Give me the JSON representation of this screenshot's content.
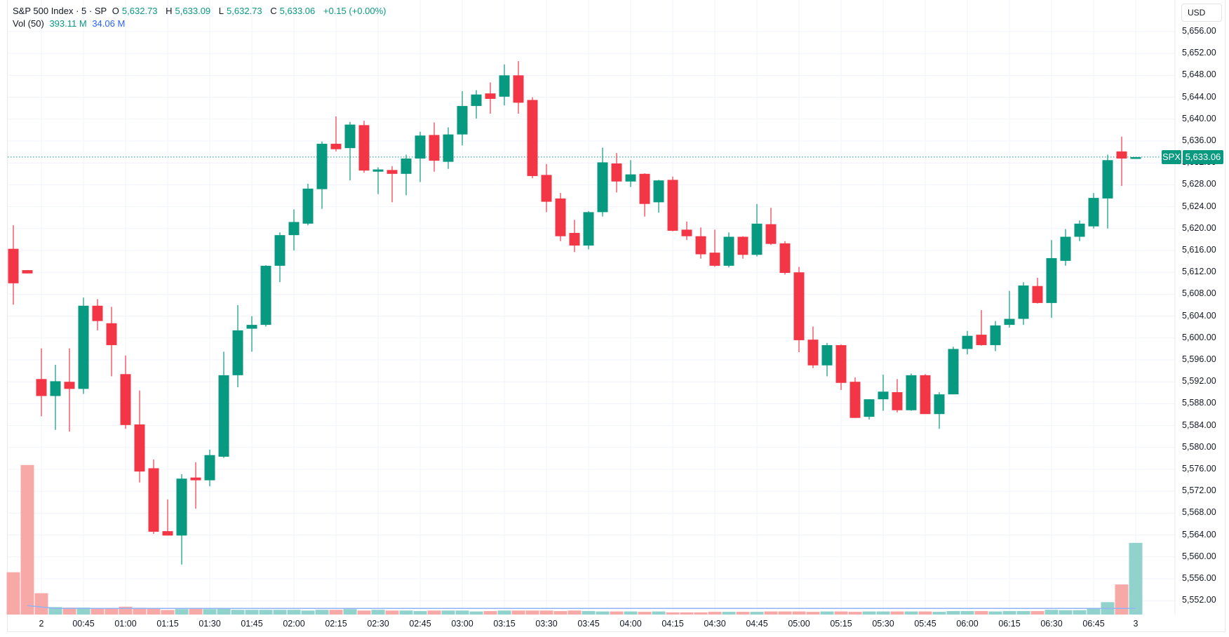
{
  "legend": {
    "symbol_line": "S&P 500 Index · 5 · SP",
    "open_label": "O",
    "open": "5,632.73",
    "high_label": "H",
    "high": "5,633.09",
    "low_label": "L",
    "low": "5,632.73",
    "close_label": "C",
    "close": "5,633.06",
    "change": "+0.15 (+0.00%)",
    "vol_label": "Vol (50)",
    "vol_value": "393.11 M",
    "vol_ma": "34.06 M"
  },
  "currency": "USD",
  "last_price_tag": {
    "symbol": "SPX",
    "price": "5,633.06"
  },
  "colors": {
    "up": "#089981",
    "down": "#f23645",
    "up_vol": "#92d2cc",
    "down_vol": "#f7a9a7",
    "grid": "#f0f3fa",
    "ma": "#2962ff"
  },
  "y_axis_labels": [
    "5,656.00",
    "5,652.00",
    "5,648.00",
    "5,644.00",
    "5,640.00",
    "5,636.00",
    "5,632.00",
    "5,628.00",
    "5,624.00",
    "5,620.00",
    "5,616.00",
    "5,612.00",
    "5,608.00",
    "5,604.00",
    "5,600.00",
    "5,596.00",
    "5,592.00",
    "5,588.00",
    "5,584.00",
    "5,580.00",
    "5,576.00",
    "5,572.00",
    "5,568.00",
    "5,564.00",
    "5,560.00",
    "5,556.00",
    "5,552.00"
  ],
  "x_axis_labels": [
    "2",
    "00:45",
    "01:00",
    "01:15",
    "01:30",
    "01:45",
    "02:00",
    "02:15",
    "02:30",
    "02:45",
    "03:00",
    "03:15",
    "03:30",
    "03:45",
    "04:00",
    "04:15",
    "04:30",
    "04:45",
    "05:00",
    "05:15",
    "05:30",
    "05:45",
    "06:00",
    "06:15",
    "06:30",
    "06:45",
    "3"
  ],
  "chart_data": {
    "type": "candlestick",
    "title": "S&P 500 Index · 5 · SP",
    "ylabel": "USD",
    "ylim": [
      5550,
      5658
    ],
    "ohlc": [
      [
        5616.3,
        5620.6,
        5606.1,
        5610.0
      ],
      [
        5612.4,
        5612.4,
        5611.8,
        5611.8
      ],
      [
        5592.5,
        5598.1,
        5585.7,
        5589.4
      ],
      [
        5589.4,
        5595.1,
        5583.2,
        5592.1
      ],
      [
        5592.0,
        5598.1,
        5582.9,
        5590.7
      ],
      [
        5590.7,
        5607.4,
        5589.8,
        5605.9
      ],
      [
        5605.9,
        5607.1,
        5601.4,
        5603.1
      ],
      [
        5602.7,
        5605.7,
        5593.0,
        5598.7
      ],
      [
        5593.4,
        5596.8,
        5583.4,
        5584.1
      ],
      [
        5584.2,
        5590.4,
        5573.6,
        5575.6
      ],
      [
        5576.2,
        5577.8,
        5564.2,
        5564.6
      ],
      [
        5564.7,
        5570.5,
        5563.9,
        5563.9
      ],
      [
        5563.9,
        5575.1,
        5558.6,
        5574.3
      ],
      [
        5574.5,
        5577.3,
        5568.8,
        5574.0
      ],
      [
        5574.0,
        5579.6,
        5572.9,
        5578.6
      ],
      [
        5578.3,
        5597.5,
        5578.1,
        5593.2
      ],
      [
        5593.2,
        5606.0,
        5591.0,
        5601.4
      ],
      [
        5601.7,
        5604.0,
        5597.5,
        5602.4
      ],
      [
        5602.4,
        5613.3,
        5602.1,
        5613.2
      ],
      [
        5613.2,
        5619.3,
        5610.2,
        5618.8
      ],
      [
        5618.8,
        5623.5,
        5616.0,
        5621.2
      ],
      [
        5620.9,
        5628.2,
        5620.6,
        5627.3
      ],
      [
        5627.2,
        5635.9,
        5623.6,
        5635.5
      ],
      [
        5635.5,
        5640.5,
        5634.1,
        5634.5
      ],
      [
        5634.7,
        5639.5,
        5628.8,
        5639.0
      ],
      [
        5638.9,
        5639.7,
        5630.2,
        5630.6
      ],
      [
        5630.4,
        5631.2,
        5626.3,
        5630.8
      ],
      [
        5630.7,
        5631.4,
        5624.8,
        5630.0
      ],
      [
        5630.0,
        5633.5,
        5626.1,
        5632.8
      ],
      [
        5632.8,
        5637.7,
        5628.5,
        5637.0
      ],
      [
        5637.1,
        5639.4,
        5630.4,
        5632.4
      ],
      [
        5632.2,
        5638.5,
        5630.9,
        5637.2
      ],
      [
        5637.2,
        5645.1,
        5635.2,
        5642.4
      ],
      [
        5642.4,
        5645.3,
        5640.1,
        5644.5
      ],
      [
        5644.7,
        5646.7,
        5641.0,
        5643.7
      ],
      [
        5644.1,
        5650.0,
        5642.5,
        5648.0
      ],
      [
        5648.0,
        5650.6,
        5641.0,
        5643.0
      ],
      [
        5643.5,
        5644.0,
        5629.2,
        5629.6
      ],
      [
        5629.8,
        5631.8,
        5623.0,
        5624.9
      ],
      [
        5625.5,
        5626.5,
        5617.7,
        5618.6
      ],
      [
        5619.2,
        5621.6,
        5615.7,
        5616.9
      ],
      [
        5616.9,
        5623.2,
        5616.2,
        5623.0
      ],
      [
        5623.0,
        5634.8,
        5622.2,
        5632.1
      ],
      [
        5631.9,
        5633.8,
        5626.6,
        5628.6
      ],
      [
        5628.6,
        5632.5,
        5627.6,
        5629.9
      ],
      [
        5630.0,
        5630.1,
        5622.2,
        5624.5
      ],
      [
        5624.8,
        5628.9,
        5622.9,
        5628.8
      ],
      [
        5628.9,
        5629.5,
        5619.5,
        5619.6
      ],
      [
        5619.8,
        5621.3,
        5617.9,
        5618.6
      ],
      [
        5618.6,
        5620.2,
        5614.5,
        5615.3
      ],
      [
        5615.6,
        5619.8,
        5613.0,
        5613.2
      ],
      [
        5613.2,
        5619.3,
        5612.9,
        5618.5
      ],
      [
        5618.5,
        5618.6,
        5614.5,
        5615.2
      ],
      [
        5615.2,
        5624.5,
        5614.9,
        5620.9
      ],
      [
        5620.8,
        5623.8,
        5617.0,
        5617.2
      ],
      [
        5617.3,
        5617.7,
        5611.6,
        5611.9
      ],
      [
        5612.0,
        5613.0,
        5597.4,
        5599.6
      ],
      [
        5599.7,
        5602.1,
        5594.5,
        5595.0
      ],
      [
        5595.0,
        5599.1,
        5593.0,
        5598.7
      ],
      [
        5598.7,
        5598.8,
        5590.5,
        5591.8
      ],
      [
        5592.0,
        5592.8,
        5585.4,
        5585.4
      ],
      [
        5585.6,
        5588.8,
        5585.1,
        5588.8
      ],
      [
        5588.8,
        5593.3,
        5586.7,
        5590.2
      ],
      [
        5590.1,
        5592.5,
        5586.4,
        5586.8
      ],
      [
        5586.8,
        5593.5,
        5586.7,
        5593.2
      ],
      [
        5593.2,
        5593.4,
        5586.1,
        5586.1
      ],
      [
        5586.1,
        5590.1,
        5583.4,
        5589.7
      ],
      [
        5589.7,
        5598.4,
        5589.7,
        5598.0
      ],
      [
        5598.0,
        5601.3,
        5597.0,
        5600.4
      ],
      [
        5600.6,
        5605.1,
        5598.6,
        5598.7
      ],
      [
        5598.7,
        5603.1,
        5597.6,
        5602.3
      ],
      [
        5602.4,
        5608.6,
        5601.9,
        5603.5
      ],
      [
        5603.5,
        5610.2,
        5602.4,
        5609.6
      ],
      [
        5609.5,
        5611.0,
        5606.3,
        5606.4
      ],
      [
        5606.4,
        5617.9,
        5603.7,
        5614.6
      ],
      [
        5614.1,
        5619.9,
        5613.2,
        5618.5
      ],
      [
        5618.5,
        5621.5,
        5617.7,
        5620.9
      ],
      [
        5620.4,
        5626.5,
        5620.0,
        5625.6
      ],
      [
        5625.5,
        5633.5,
        5620.0,
        5632.5
      ],
      [
        5634.1,
        5636.8,
        5627.8,
        5632.8
      ],
      [
        5632.73,
        5633.09,
        5632.73,
        5633.06
      ]
    ],
    "volume_m": [
      232,
      820,
      117,
      41,
      38,
      38,
      34,
      32,
      43,
      37,
      32,
      25,
      30,
      34,
      30,
      34,
      26,
      26,
      26,
      26,
      26,
      22,
      26,
      26,
      30,
      22,
      26,
      22,
      22,
      19,
      22,
      22,
      22,
      17,
      19,
      22,
      22,
      22,
      22,
      19,
      22,
      19,
      17,
      17,
      17,
      15,
      17,
      12,
      12,
      12,
      15,
      15,
      15,
      15,
      17,
      17,
      17,
      15,
      17,
      17,
      15,
      17,
      17,
      17,
      17,
      17,
      15,
      19,
      19,
      19,
      17,
      19,
      19,
      19,
      26,
      24,
      24,
      34,
      68,
      165,
      393.11
    ],
    "volume_ma_m": 34.06
  }
}
